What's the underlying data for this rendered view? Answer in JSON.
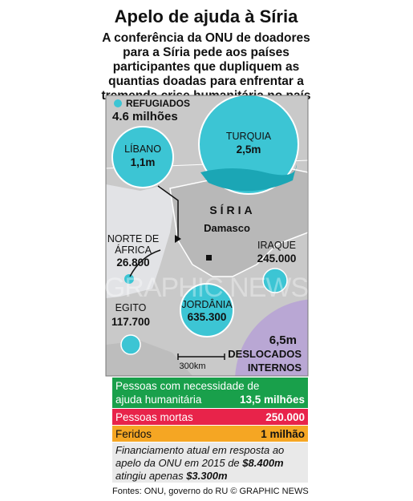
{
  "header": {
    "title": "Apelo de ajuda à Síria",
    "subtitle": [
      "A conferência da ONU de doadores",
      "para a Síria pede aos países",
      "participantes que dupliquem as",
      "quantias doadas para enfrentar a",
      "tremenda crise humanitária no país"
    ]
  },
  "map": {
    "legend": {
      "label": "REFUGIADOS",
      "total": "4.6 milhões"
    },
    "country": "SÍRIA",
    "capital": "Damasco",
    "scale": "300km",
    "refugees": [
      {
        "name": "TURQUIA",
        "value": "2,5m"
      },
      {
        "name": "LÍBANO",
        "value": "1,1m"
      },
      {
        "name": [
          "NORTE DE",
          "ÁFRICA"
        ],
        "value": "26.800"
      },
      {
        "name": "IRAQUE",
        "value": "245.000"
      },
      {
        "name": "JORDÂNIA",
        "value": "635.300"
      },
      {
        "name": "EGITO",
        "value": "117.700"
      }
    ],
    "displaced": {
      "value": "6,5m",
      "label": [
        "DESLOCADOS",
        "INTERNOS"
      ]
    },
    "watermark": "GRAPHIC NEWS"
  },
  "stats": [
    {
      "label": [
        "Pessoas com necessidade de",
        "ajuda humanitária"
      ],
      "value": "13,5 milhões"
    },
    {
      "label": [
        "Pessoas mortas"
      ],
      "value": "250.000"
    },
    {
      "label": [
        "Feridos"
      ],
      "value": "1 milhão"
    }
  ],
  "financing": [
    [
      "Financiamento atual em resposta ao"
    ],
    [
      "apelo da ONU em 2015 de ",
      "$8.400m"
    ],
    [
      "atingiu apenas ",
      "$3.300m"
    ]
  ],
  "footer": "Fontes: ONU, governo do RU © GRAPHIC NEWS"
}
